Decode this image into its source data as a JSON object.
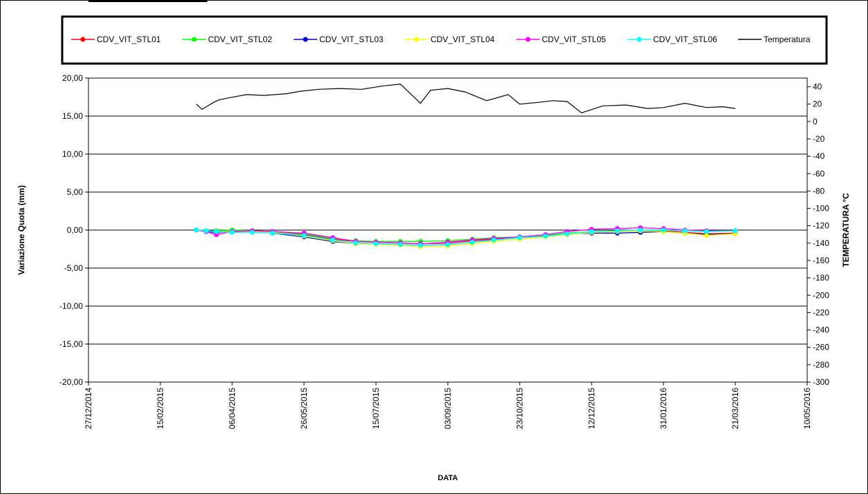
{
  "colors": {
    "CDV_VIT_STL01": "#ff0000",
    "CDV_VIT_STL02": "#00ff00",
    "CDV_VIT_STL03": "#0000cc",
    "CDV_VIT_STL04": "#ffff00",
    "CDV_VIT_STL05": "#ff00ff",
    "CDV_VIT_STL06": "#00ffff",
    "Temperatura": "#000000",
    "gridline": "#000000"
  },
  "chart_data": {
    "type": "line",
    "title": "",
    "xlabel": "DATA",
    "ylabel": "Variazione Quota (mm)",
    "y2label": "TEMPERATURA °C",
    "xlim": [
      "2014-12-27",
      "2016-05-10"
    ],
    "ylim": [
      -20,
      20
    ],
    "y2lim": [
      -300,
      50
    ],
    "grid": "horizontal",
    "legend": "top",
    "x_ticks": [
      "27/12/2014",
      "15/02/2015",
      "06/04/2015",
      "26/05/2015",
      "15/07/2015",
      "03/09/2015",
      "23/10/2015",
      "12/12/2015",
      "31/01/2016",
      "21/03/2016",
      "10/05/2016"
    ],
    "y_ticks": [
      "20,00",
      "15,00",
      "10,00",
      "5,00",
      "0,00",
      "-5,00",
      "-10,00",
      "-15,00",
      "-20,00"
    ],
    "y2_ticks": [
      "40",
      "20",
      "0",
      "-20",
      "-40",
      "-60",
      "-80",
      "-100",
      "-120",
      "-140",
      "-160",
      "-180",
      "-200",
      "-220",
      "-240",
      "-260",
      "-280",
      "-300"
    ],
    "series": [
      {
        "name": "CDV_VIT_STL01",
        "axis": "left",
        "x": [
          "2015-03-12",
          "2015-03-19",
          "2015-03-26",
          "2015-04-06",
          "2015-04-20",
          "2015-05-04",
          "2015-05-26",
          "2015-06-15",
          "2015-07-01",
          "2015-07-15",
          "2015-08-01",
          "2015-08-15",
          "2015-09-03",
          "2015-09-20",
          "2015-10-05",
          "2015-10-23",
          "2015-11-10",
          "2015-11-25",
          "2015-12-12",
          "2015-12-30",
          "2016-01-15",
          "2016-01-31",
          "2016-02-15",
          "2016-03-01",
          "2016-03-21"
        ],
        "values": [
          0.0,
          -0.1,
          -0.2,
          -0.1,
          -0.1,
          -0.2,
          -0.6,
          -1.2,
          -1.5,
          -1.6,
          -1.7,
          -1.8,
          -1.7,
          -1.4,
          -1.2,
          -1.0,
          -0.8,
          -0.5,
          -0.3,
          -0.2,
          -0.1,
          -0.1,
          -0.3,
          -0.5,
          -0.4
        ]
      },
      {
        "name": "CDV_VIT_STL02",
        "axis": "left",
        "x": [
          "2015-03-12",
          "2015-03-19",
          "2015-03-26",
          "2015-04-06",
          "2015-04-20",
          "2015-05-04",
          "2015-05-26",
          "2015-06-15",
          "2015-07-01",
          "2015-07-15",
          "2015-08-01",
          "2015-08-15",
          "2015-09-03",
          "2015-09-20",
          "2015-10-05",
          "2015-10-23",
          "2015-11-10",
          "2015-11-25",
          "2015-12-12",
          "2015-12-30",
          "2016-01-15",
          "2016-01-31",
          "2016-02-15",
          "2016-03-01",
          "2016-03-21"
        ],
        "values": [
          0.0,
          -0.1,
          -0.1,
          0.0,
          -0.1,
          -0.2,
          -0.5,
          -1.1,
          -1.4,
          -1.5,
          -1.5,
          -1.5,
          -1.4,
          -1.2,
          -1.0,
          -0.9,
          -0.7,
          -0.4,
          -0.2,
          -0.1,
          0.0,
          0.0,
          -0.1,
          -0.2,
          -0.1
        ]
      },
      {
        "name": "CDV_VIT_STL03",
        "axis": "left",
        "x": [
          "2015-03-12",
          "2015-03-19",
          "2015-03-26",
          "2015-04-06",
          "2015-04-20",
          "2015-05-04",
          "2015-05-26",
          "2015-06-15",
          "2015-07-01",
          "2015-07-15",
          "2015-08-01",
          "2015-08-15",
          "2015-09-03",
          "2015-09-20",
          "2015-10-05",
          "2015-10-23",
          "2015-11-10",
          "2015-11-25",
          "2015-12-12",
          "2015-12-30",
          "2016-01-15",
          "2016-01-31",
          "2016-02-15",
          "2016-03-01",
          "2016-03-21"
        ],
        "values": [
          0.0,
          -0.2,
          -0.3,
          -0.2,
          -0.2,
          -0.4,
          -0.9,
          -1.5,
          -1.8,
          -1.8,
          -1.9,
          -2.0,
          -1.9,
          -1.6,
          -1.3,
          -1.0,
          -0.8,
          -0.5,
          -0.4,
          -0.4,
          -0.3,
          -0.2,
          -0.4,
          -0.6,
          -0.5
        ]
      },
      {
        "name": "CDV_VIT_STL04",
        "axis": "left",
        "x": [
          "2015-03-12",
          "2015-03-19",
          "2015-03-26",
          "2015-04-06",
          "2015-04-20",
          "2015-05-04",
          "2015-05-26",
          "2015-06-15",
          "2015-07-01",
          "2015-07-15",
          "2015-08-01",
          "2015-08-15",
          "2015-09-03",
          "2015-09-20",
          "2015-10-05",
          "2015-10-23",
          "2015-11-10",
          "2015-11-25",
          "2015-12-12",
          "2015-12-30",
          "2016-01-15",
          "2016-01-31",
          "2016-02-15",
          "2016-03-01",
          "2016-03-21"
        ],
        "values": [
          0.0,
          -0.1,
          -0.2,
          -0.2,
          -0.2,
          -0.3,
          -0.8,
          -1.4,
          -1.8,
          -1.9,
          -2.0,
          -2.2,
          -2.1,
          -1.8,
          -1.5,
          -1.2,
          -0.9,
          -0.6,
          -0.3,
          -0.2,
          -0.1,
          -0.2,
          -0.4,
          -0.7,
          -0.5
        ]
      },
      {
        "name": "CDV_VIT_STL05",
        "axis": "left",
        "x": [
          "2015-03-12",
          "2015-03-19",
          "2015-03-26",
          "2015-04-06",
          "2015-04-20",
          "2015-05-04",
          "2015-05-26",
          "2015-06-15",
          "2015-07-01",
          "2015-07-15",
          "2015-08-01",
          "2015-08-15",
          "2015-09-03",
          "2015-09-20",
          "2015-10-05",
          "2015-10-23",
          "2015-11-10",
          "2015-11-25",
          "2015-12-12",
          "2015-12-30",
          "2016-01-15",
          "2016-01-31",
          "2016-02-15",
          "2016-03-01",
          "2016-03-21"
        ],
        "values": [
          0.0,
          -0.2,
          -0.6,
          -0.2,
          -0.1,
          -0.2,
          -0.4,
          -1.0,
          -1.5,
          -1.6,
          -1.7,
          -1.8,
          -1.6,
          -1.3,
          -1.1,
          -0.9,
          -0.6,
          -0.2,
          0.1,
          0.2,
          0.3,
          0.2,
          0.0,
          -0.1,
          -0.1
        ]
      },
      {
        "name": "CDV_VIT_STL06",
        "axis": "left",
        "x": [
          "2015-03-12",
          "2015-03-19",
          "2015-03-26",
          "2015-04-06",
          "2015-04-20",
          "2015-05-04",
          "2015-05-26",
          "2015-06-15",
          "2015-07-01",
          "2015-07-15",
          "2015-08-01",
          "2015-08-15",
          "2015-09-03",
          "2015-09-20",
          "2015-10-05",
          "2015-10-23",
          "2015-11-10",
          "2015-11-25",
          "2015-12-12",
          "2015-12-30",
          "2016-01-15",
          "2016-01-31",
          "2016-02-15",
          "2016-03-01",
          "2016-03-21"
        ],
        "values": [
          0.0,
          -0.1,
          -0.2,
          -0.3,
          -0.3,
          -0.4,
          -0.7,
          -1.3,
          -1.7,
          -1.8,
          -1.9,
          -2.0,
          -1.9,
          -1.6,
          -1.3,
          -1.0,
          -0.8,
          -0.5,
          -0.2,
          -0.1,
          0.0,
          0.0,
          -0.1,
          -0.2,
          -0.1
        ]
      },
      {
        "name": "Temperatura",
        "axis": "right",
        "x": [
          "2015-03-12",
          "2015-03-16",
          "2015-03-20",
          "2015-03-24",
          "2015-03-28",
          "2015-04-06",
          "2015-04-16",
          "2015-04-28",
          "2015-05-14",
          "2015-05-24",
          "2015-06-05",
          "2015-06-20",
          "2015-07-05",
          "2015-07-20",
          "2015-08-01",
          "2015-08-15",
          "2015-08-22",
          "2015-09-03",
          "2015-09-15",
          "2015-09-30",
          "2015-10-15",
          "2015-10-23",
          "2015-11-05",
          "2015-11-15",
          "2015-11-25",
          "2015-12-05",
          "2015-12-20",
          "2016-01-05",
          "2016-01-20",
          "2016-01-31",
          "2016-02-15",
          "2016-03-01",
          "2016-03-12",
          "2016-03-21"
        ],
        "values": [
          20,
          14,
          18,
          22,
          25,
          28,
          31,
          30,
          32,
          35,
          37,
          38,
          37,
          41,
          43,
          21,
          36,
          38,
          34,
          24,
          31,
          20,
          22,
          24,
          23,
          10,
          18,
          19,
          15,
          16,
          21,
          16,
          17,
          15
        ]
      }
    ]
  }
}
